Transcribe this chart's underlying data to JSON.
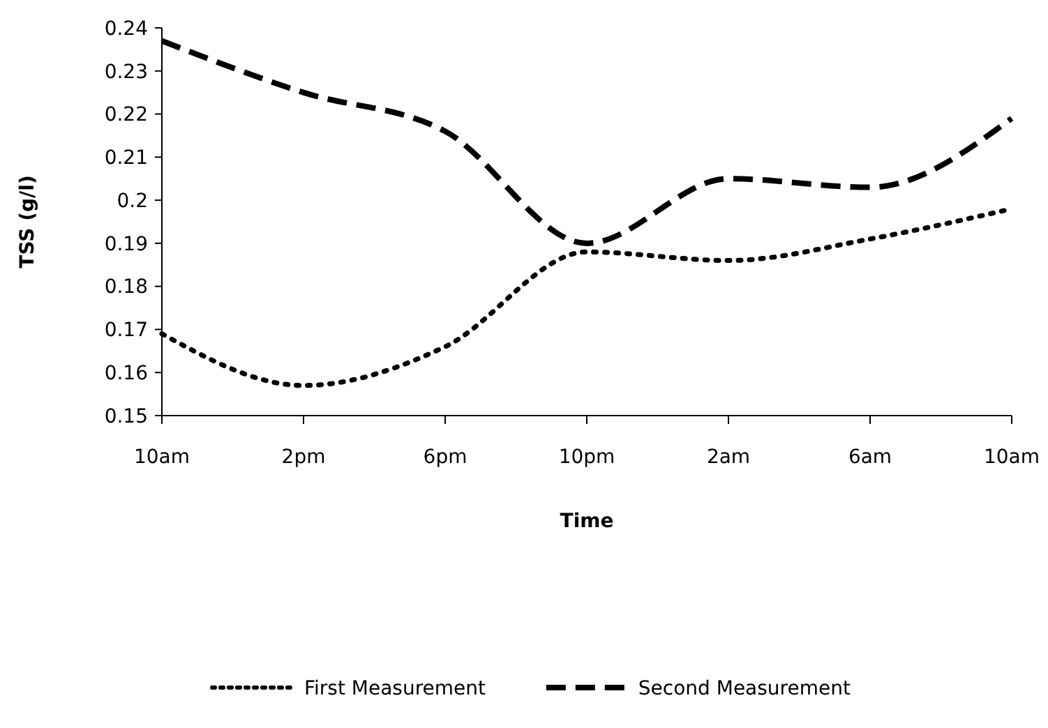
{
  "chart_data": {
    "type": "line",
    "xlabel": "Time",
    "ylabel": "TSS (g/l)",
    "categories": [
      "10am",
      "2pm",
      "6pm",
      "10pm",
      "2am",
      "6am",
      "10am"
    ],
    "series": [
      {
        "name": "First Measurement",
        "color": "#000000",
        "line_style": "dotted",
        "values": [
          0.169,
          0.157,
          0.166,
          0.188,
          0.186,
          0.191,
          0.198
        ]
      },
      {
        "name": "Second Measurement",
        "color": "#000000",
        "line_style": "dashed",
        "values": [
          0.237,
          0.225,
          0.216,
          0.19,
          0.205,
          0.203,
          0.219
        ]
      }
    ],
    "ylim": [
      0.15,
      0.24
    ],
    "yticks": [
      0.15,
      0.16,
      0.17,
      0.18,
      0.19,
      0.2,
      0.21,
      0.22,
      0.23,
      0.24
    ],
    "grid": false,
    "legend": "bottom",
    "marker": "none"
  }
}
